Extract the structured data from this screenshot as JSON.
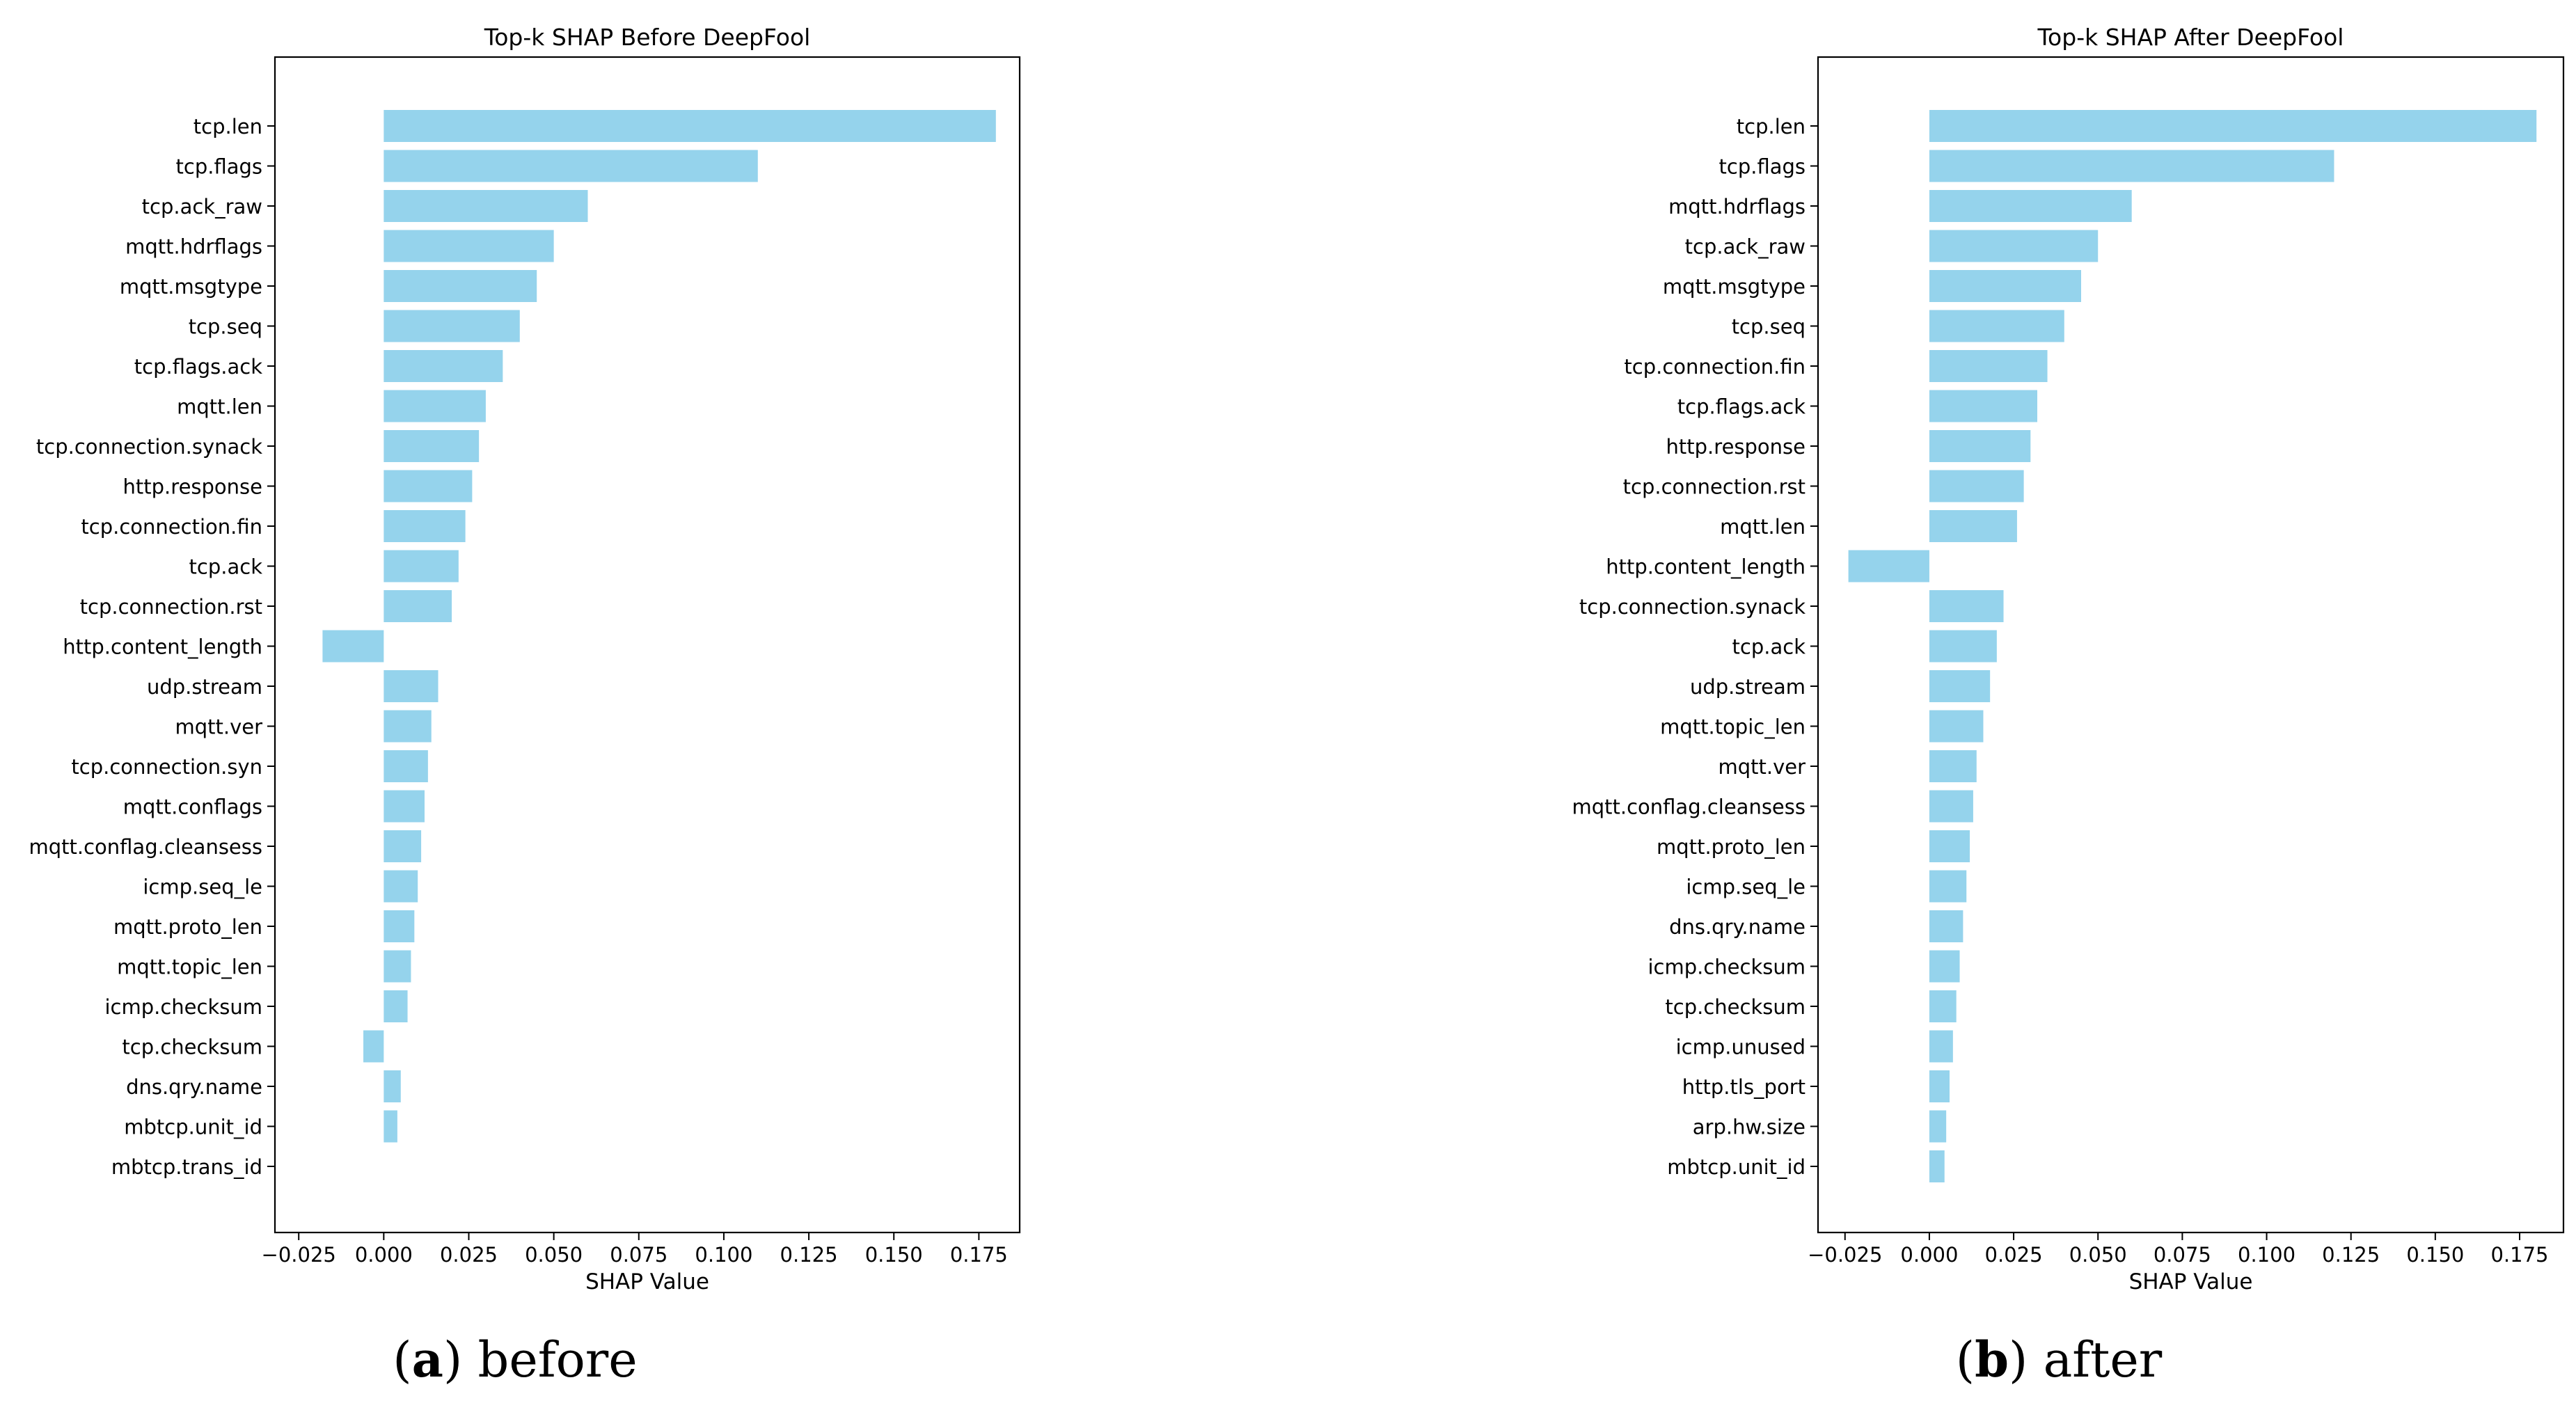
{
  "chart_data": [
    {
      "type": "bar",
      "orientation": "horizontal",
      "title": "Top-k SHAP Before DeepFool",
      "xlabel": "SHAP Value",
      "ylabel": "",
      "xlim": [
        -0.032,
        0.187
      ],
      "xticks": [
        -0.025,
        0.0,
        0.025,
        0.05,
        0.075,
        0.1,
        0.125,
        0.15,
        0.175
      ],
      "xtick_labels": [
        "−0.025",
        "0.000",
        "0.025",
        "0.050",
        "0.075",
        "0.100",
        "0.125",
        "0.150",
        "0.175"
      ],
      "bar_color": "#95d3ec",
      "grid": false,
      "categories": [
        "tcp.len",
        "tcp.flags",
        "tcp.ack_raw",
        "mqtt.hdrflags",
        "mqtt.msgtype",
        "tcp.seq",
        "tcp.flags.ack",
        "mqtt.len",
        "tcp.connection.synack",
        "http.response",
        "tcp.connection.fin",
        "tcp.ack",
        "tcp.connection.rst",
        "http.content_length",
        "udp.stream",
        "mqtt.ver",
        "tcp.connection.syn",
        "mqtt.conflags",
        "mqtt.conflag.cleansess",
        "icmp.seq_le",
        "mqtt.proto_len",
        "mqtt.topic_len",
        "icmp.checksum",
        "tcp.checksum",
        "dns.qry.name",
        "mbtcp.unit_id",
        "mbtcp.trans_id"
      ],
      "values": [
        0.18,
        0.11,
        0.06,
        0.05,
        0.045,
        0.04,
        0.035,
        0.03,
        0.028,
        0.026,
        0.024,
        0.022,
        0.02,
        -0.018,
        0.016,
        0.014,
        0.013,
        0.012,
        0.011,
        0.01,
        0.009,
        0.008,
        0.007,
        -0.006,
        0.005,
        0.004,
        0.0
      ],
      "caption_letter": "a",
      "caption_text": ") before",
      "caption_open": "("
    },
    {
      "type": "bar",
      "orientation": "horizontal",
      "title": "Top-k SHAP After DeepFool",
      "xlabel": "SHAP Value",
      "ylabel": "",
      "xlim": [
        -0.033,
        0.188
      ],
      "xticks": [
        -0.025,
        0.0,
        0.025,
        0.05,
        0.075,
        0.1,
        0.125,
        0.15,
        0.175
      ],
      "xtick_labels": [
        "−0.025",
        "0.000",
        "0.025",
        "0.050",
        "0.075",
        "0.100",
        "0.125",
        "0.150",
        "0.175"
      ],
      "bar_color": "#95d3ec",
      "grid": false,
      "categories": [
        "tcp.len",
        "tcp.flags",
        "mqtt.hdrflags",
        "tcp.ack_raw",
        "mqtt.msgtype",
        "tcp.seq",
        "tcp.connection.fin",
        "tcp.flags.ack",
        "http.response",
        "tcp.connection.rst",
        "mqtt.len",
        "http.content_length",
        "tcp.connection.synack",
        "tcp.ack",
        "udp.stream",
        "mqtt.topic_len",
        "mqtt.ver",
        "mqtt.conflag.cleansess",
        "mqtt.proto_len",
        "icmp.seq_le",
        "dns.qry.name",
        "icmp.checksum",
        "tcp.checksum",
        "icmp.unused",
        "http.tls_port",
        "arp.hw.size",
        "mbtcp.unit_id"
      ],
      "values": [
        0.18,
        0.12,
        0.06,
        0.05,
        0.045,
        0.04,
        0.035,
        0.032,
        0.03,
        0.028,
        0.026,
        -0.024,
        0.022,
        0.02,
        0.018,
        0.016,
        0.014,
        0.013,
        0.012,
        0.011,
        0.01,
        0.009,
        0.008,
        0.007,
        0.006,
        0.005,
        0.0045
      ],
      "caption_letter": "b",
      "caption_text": ") after",
      "caption_open": "("
    }
  ]
}
